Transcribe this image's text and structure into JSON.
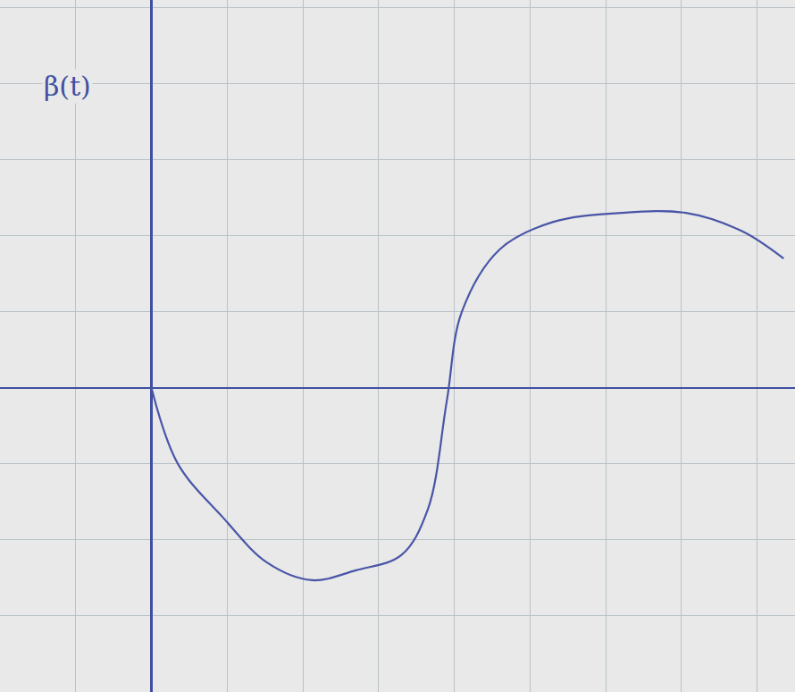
{
  "chart_data": {
    "type": "line",
    "ylabel": "β(t)",
    "x": [
      0,
      0.35,
      0.94,
      1.53,
      2.12,
      2.7,
      3.3,
      3.65,
      3.9,
      4.1,
      4.6,
      5.3,
      6.2,
      7.06,
      7.8,
      8.35
    ],
    "values": [
      0,
      -1.0,
      -1.7,
      -2.3,
      -2.53,
      -2.4,
      -2.2,
      -1.6,
      -0.18,
      1.0,
      1.82,
      2.18,
      2.3,
      2.3,
      2.06,
      1.7
    ],
    "color": "#4a55a8",
    "line_style": "solid",
    "xlim": [
      -2,
      8.5
    ],
    "ylim": [
      -4,
      5.1
    ],
    "xticks": [
      -2,
      -1,
      0,
      1,
      2,
      3,
      4,
      5,
      6,
      7,
      8
    ],
    "yticks": [
      -4,
      -3,
      -2,
      -1,
      0,
      1,
      2,
      3,
      4,
      5
    ],
    "grid": true,
    "tick_labels": false
  }
}
